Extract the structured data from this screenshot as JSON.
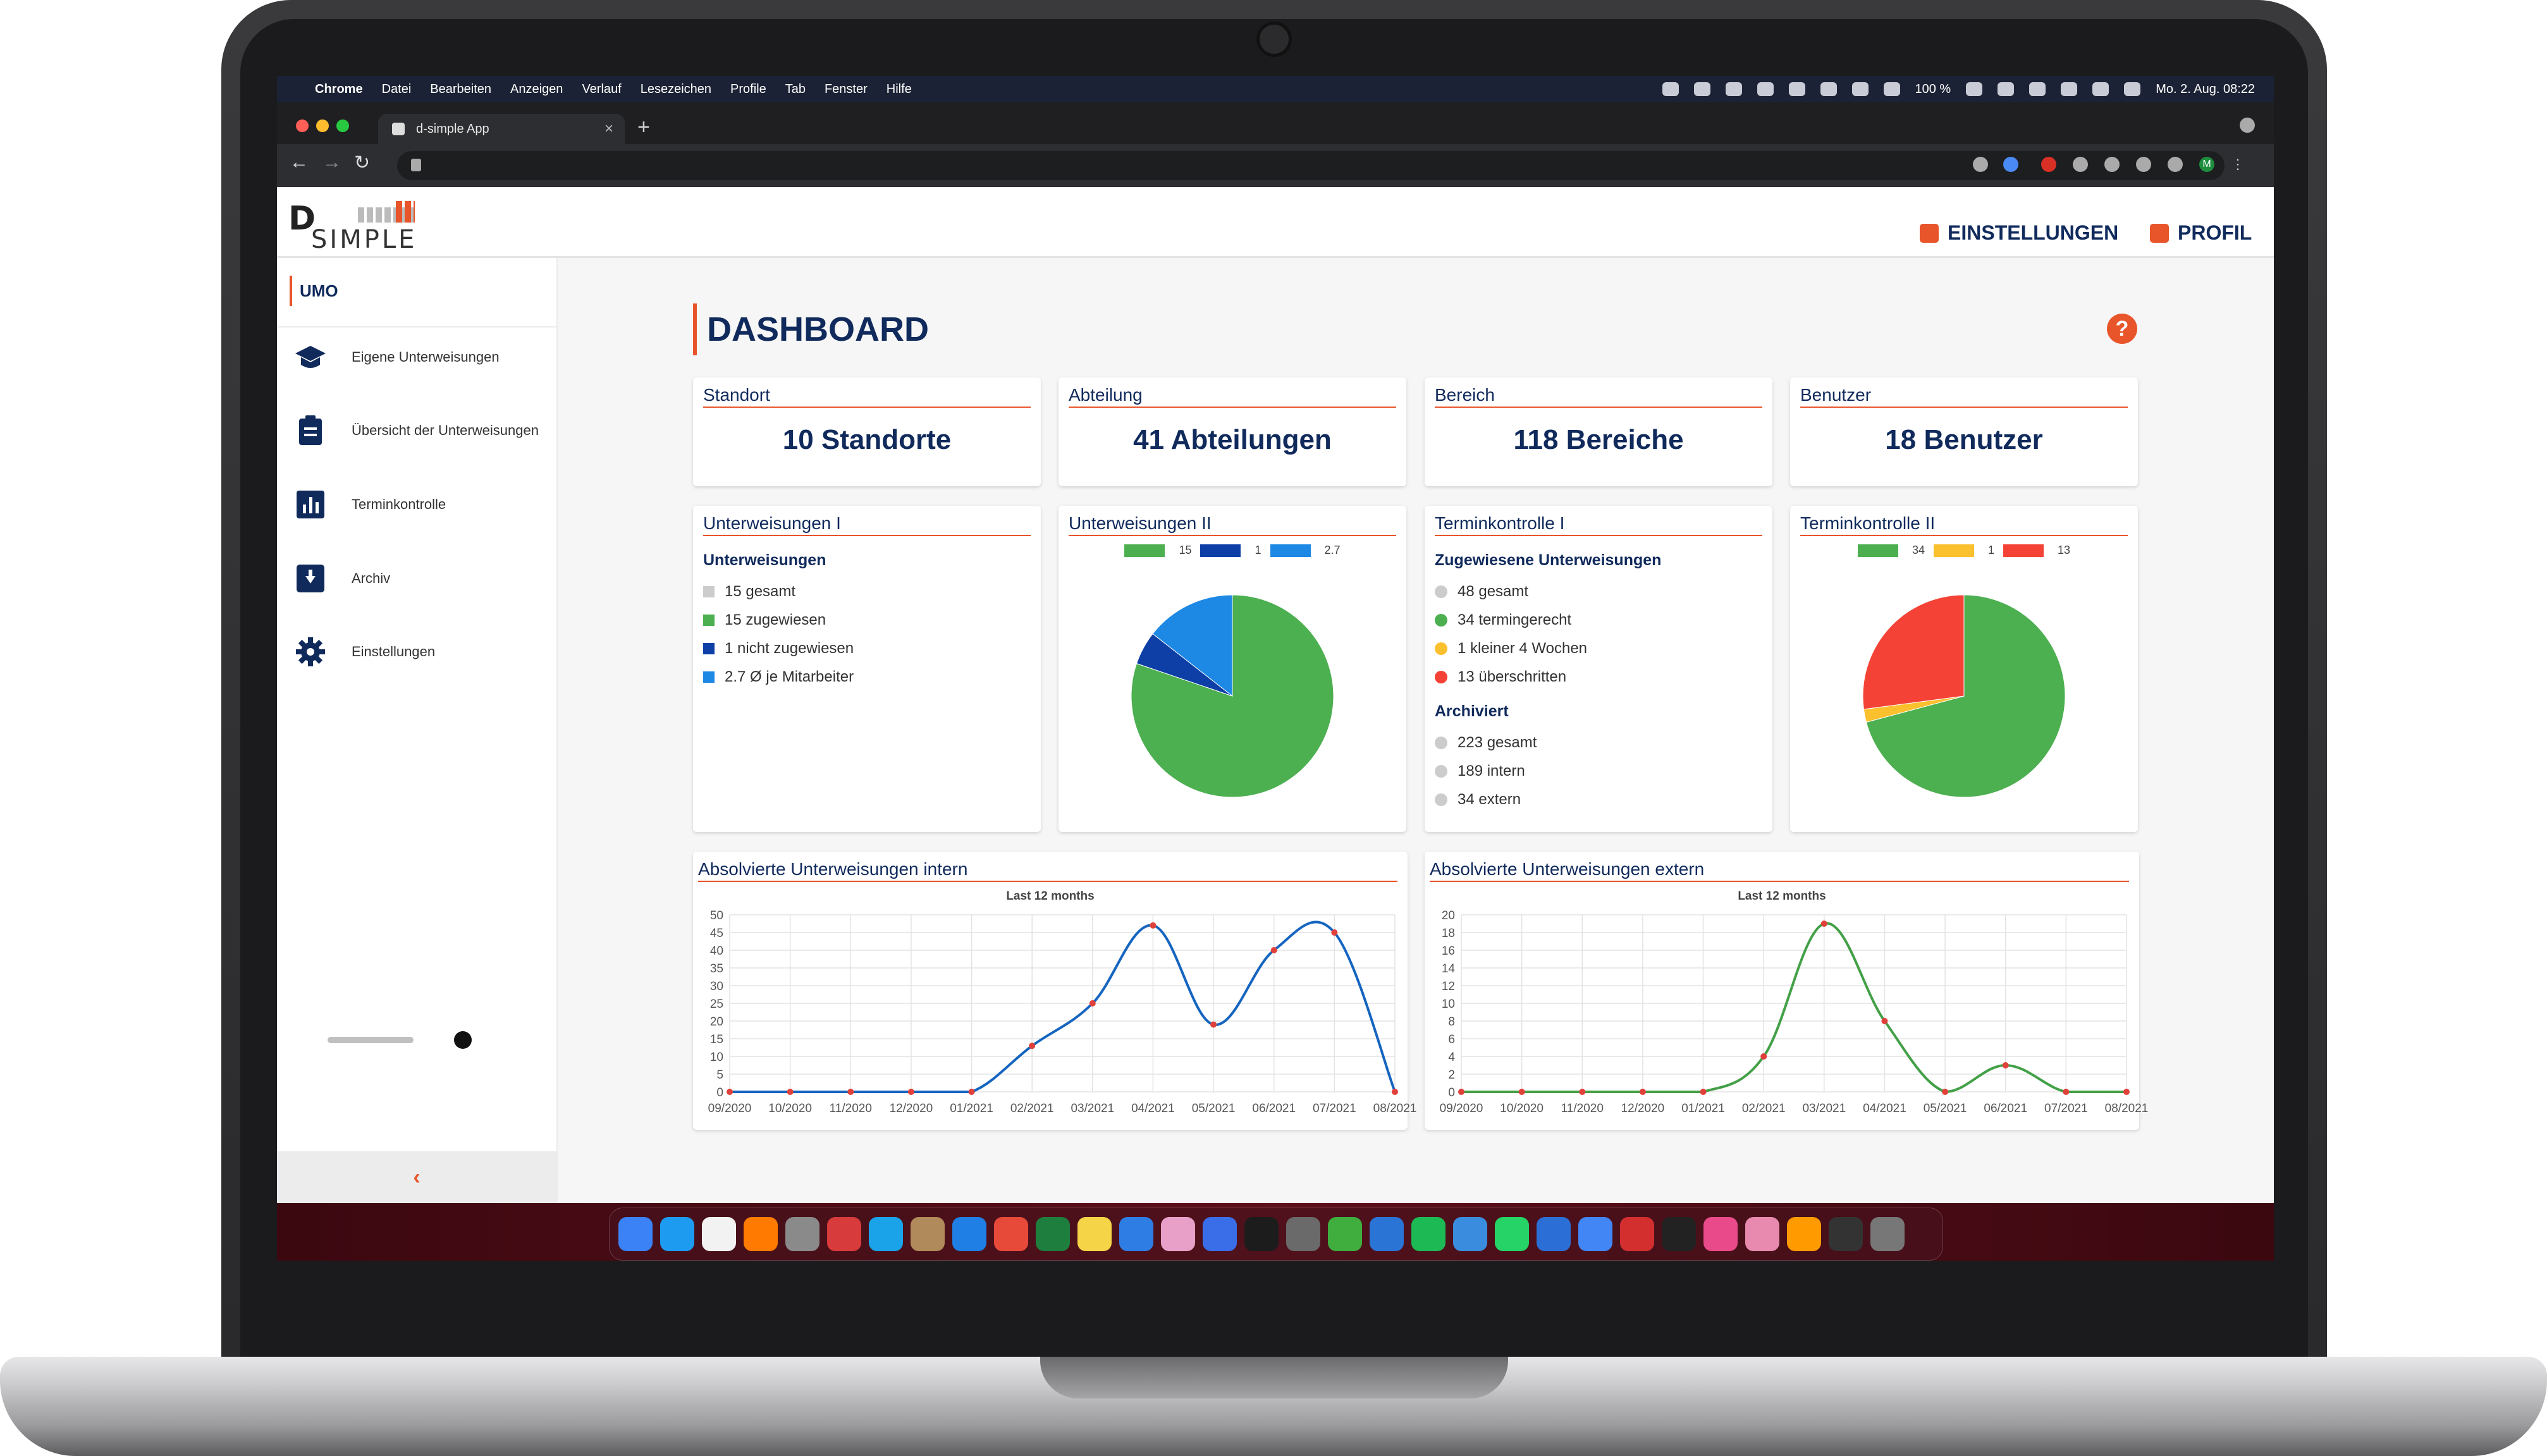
{
  "menubar": {
    "items": [
      "Chrome",
      "Datei",
      "Bearbeiten",
      "Anzeigen",
      "Verlauf",
      "Lesezeichen",
      "Profile",
      "Tab",
      "Fenster",
      "Hilfe"
    ],
    "battery": "100 %",
    "datetime": "Mo. 2. Aug.  08:22"
  },
  "browser": {
    "tab_title": "d-simple App",
    "close_glyph": "×",
    "newtab_glyph": "+",
    "back": "←",
    "forward": "→",
    "reload": "↻",
    "profile_initial": "M"
  },
  "header": {
    "logo_letter": "D",
    "logo_text": "SIMPLE",
    "settings_label": "EINSTELLUNGEN",
    "profile_label": "PROFIL"
  },
  "sidebar": {
    "org": "UMO",
    "items": [
      {
        "label": "Eigene Unterweisungen",
        "icon": "graduation-cap-icon"
      },
      {
        "label": "Übersicht der Unterweisungen",
        "icon": "clipboard-icon"
      },
      {
        "label": "Terminkontrolle",
        "icon": "bar-chart-icon"
      },
      {
        "label": "Archiv",
        "icon": "archive-box-icon"
      },
      {
        "label": "Einstellungen",
        "icon": "gear-icon"
      }
    ],
    "collapse": "‹"
  },
  "main": {
    "title": "DASHBOARD",
    "help": "?"
  },
  "stats": [
    {
      "header": "Standort",
      "value": "10 Standorte"
    },
    {
      "header": "Abteilung",
      "value": "41 Abteilungen"
    },
    {
      "header": "Bereich",
      "value": "118 Bereiche"
    },
    {
      "header": "Benutzer",
      "value": "18 Benutzer"
    }
  ],
  "unterweisungen1": {
    "header": "Unterweisungen I",
    "subheader": "Unterweisungen",
    "items": [
      {
        "text": "15 gesamt",
        "color": "#cccccc"
      },
      {
        "text": "15 zugewiesen",
        "color": "#4caf50"
      },
      {
        "text": "1 nicht zugewiesen",
        "color": "#0d3fa6"
      },
      {
        "text": "2.7 Ø je Mitarbeiter",
        "color": "#1e88e5"
      }
    ]
  },
  "unterweisungen2": {
    "header": "Unterweisungen II",
    "legend": [
      "15",
      "1",
      "2.7"
    ]
  },
  "termin1": {
    "header": "Terminkontrolle I",
    "sub1": "Zugewiesene Unterweisungen",
    "items1": [
      {
        "text": "48 gesamt",
        "color": "#cccccc"
      },
      {
        "text": "34 termingerecht",
        "color": "#4caf50"
      },
      {
        "text": "1 kleiner 4 Wochen",
        "color": "#fbc02d"
      },
      {
        "text": "13 überschritten",
        "color": "#f44336"
      }
    ],
    "sub2": "Archiviert",
    "items2": [
      {
        "text": "223 gesamt",
        "color": "#cccccc"
      },
      {
        "text": "189 intern",
        "color": "#cccccc"
      },
      {
        "text": "34 extern",
        "color": "#cccccc"
      }
    ]
  },
  "termin2": {
    "header": "Terminkontrolle II",
    "legend": [
      "34",
      "1",
      "13"
    ]
  },
  "colors": {
    "accent": "#e8552a",
    "navy": "#102a5c",
    "green": "#4caf50",
    "blue_dark": "#0d3fa6",
    "blue": "#1e88e5",
    "yellow": "#fbc02d",
    "red": "#f44336"
  },
  "chart_data": [
    {
      "type": "pie",
      "labels": [
        "15",
        "1",
        "2.7"
      ],
      "values": [
        15,
        1,
        2.7
      ],
      "colors": [
        "#4caf50",
        "#0d3fa6",
        "#1e88e5"
      ]
    },
    {
      "type": "pie",
      "labels": [
        "34",
        "1",
        "13"
      ],
      "values": [
        34,
        1,
        13
      ],
      "colors": [
        "#4caf50",
        "#fbc02d",
        "#f44336"
      ]
    },
    {
      "type": "line",
      "title": "Absolvierte Unterweisungen intern",
      "subtitle": "Last 12 months",
      "categories": [
        "09/2020",
        "10/2020",
        "11/2020",
        "12/2020",
        "01/2021",
        "02/2021",
        "03/2021",
        "04/2021",
        "05/2021",
        "06/2021",
        "07/2021",
        "08/2021"
      ],
      "values": [
        0,
        0,
        0,
        0,
        0,
        13,
        25,
        47,
        19,
        40,
        45,
        0
      ],
      "ylim": [
        0,
        50
      ],
      "yticks": [
        0,
        5,
        10,
        15,
        20,
        25,
        30,
        35,
        40,
        45,
        50
      ],
      "color": "#1565c0",
      "grid": true
    },
    {
      "type": "line",
      "title": "Absolvierte Unterweisungen extern",
      "subtitle": "Last 12 months",
      "categories": [
        "09/2020",
        "10/2020",
        "11/2020",
        "12/2020",
        "01/2021",
        "02/2021",
        "03/2021",
        "04/2021",
        "05/2021",
        "06/2021",
        "07/2021",
        "08/2021"
      ],
      "values": [
        0,
        0,
        0,
        0,
        0,
        4,
        19,
        8,
        0,
        3,
        0,
        0
      ],
      "ylim": [
        0,
        20
      ],
      "yticks": [
        0,
        2,
        4,
        6,
        8,
        10,
        12,
        14,
        16,
        18,
        20
      ],
      "color": "#43a047",
      "grid": true
    }
  ]
}
